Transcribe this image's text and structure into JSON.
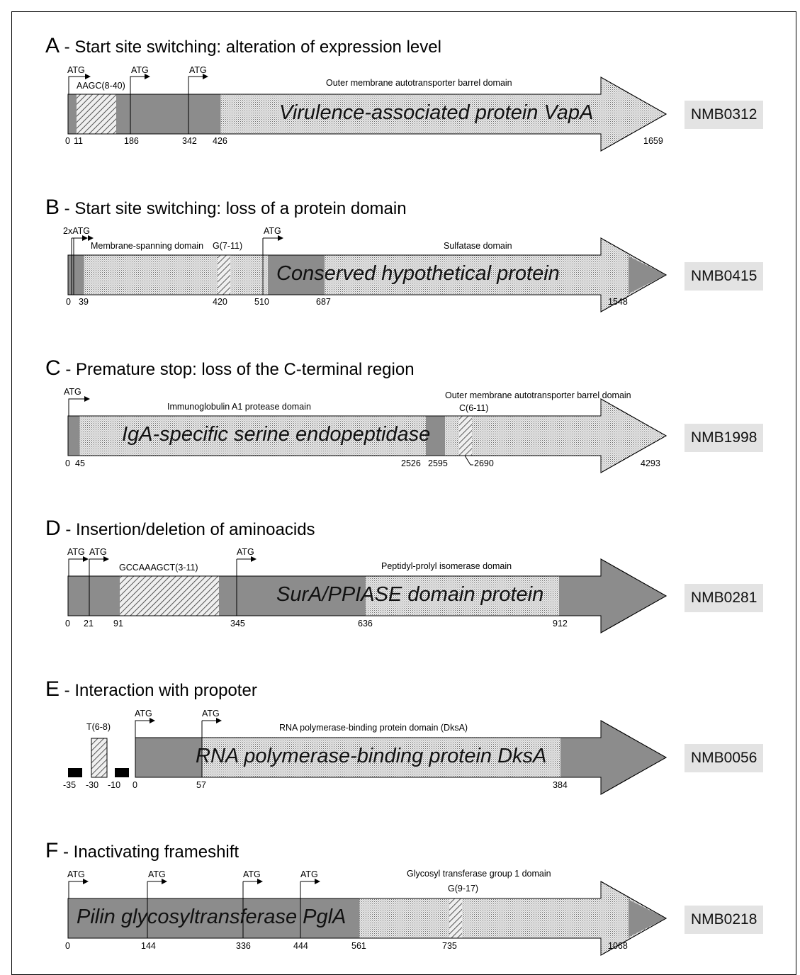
{
  "colors": {
    "domain_fill": "#8c8c8c",
    "stipple_fill": "#d2d2d2",
    "hatch_fill": "#e6e6e6",
    "gene_label_bg": "#e3e3e3"
  },
  "panels": [
    {
      "letter": "A",
      "title": " - Start site switching: alteration of expression level",
      "protein": "Virulence-associated protein VapA",
      "gene": "NMB0312",
      "domain_labels": [
        "Outer membrane autotransporter barrel domain"
      ],
      "repeat_labels": [
        "AAGC(8-40)"
      ],
      "start_labels": [
        "ATG",
        "ATG",
        "ATG"
      ],
      "positions": [
        "0",
        "11",
        "186",
        "342",
        "426",
        "1659"
      ]
    },
    {
      "letter": "B",
      "title": " - Start site switching: loss of a protein domain",
      "protein": "Conserved hypothetical protein",
      "gene": "NMB0415",
      "domain_labels": [
        "Membrane-spanning domain",
        "Sulfatase domain"
      ],
      "repeat_labels": [
        "G(7-11)"
      ],
      "start_labels": [
        "2xATG",
        "ATG"
      ],
      "positions": [
        "0",
        "39",
        "420",
        "510",
        "687",
        "1548"
      ]
    },
    {
      "letter": "C",
      "title": " - Premature stop: loss of the C-terminal region",
      "protein": "IgA-specific serine endopeptidase",
      "gene": "NMB1998",
      "domain_labels": [
        "Immunoglobulin A1 protease domain",
        "Outer membrane autotransporter barrel domain"
      ],
      "repeat_labels": [
        "C(6-11)"
      ],
      "start_labels": [
        "ATG"
      ],
      "positions": [
        "0",
        "45",
        "2526",
        "2595",
        "2690",
        "4293"
      ]
    },
    {
      "letter": "D",
      "title": " - Insertion/deletion of aminoacids",
      "protein": "SurA/PPIASE domain protein",
      "gene": "NMB0281",
      "domain_labels": [
        "Peptidyl-prolyl isomerase domain"
      ],
      "repeat_labels": [
        "GCCAAAGCT(3-11)"
      ],
      "start_labels": [
        "ATG",
        "ATG",
        "ATG"
      ],
      "positions": [
        "0",
        "21",
        "91",
        "345",
        "636",
        "912"
      ]
    },
    {
      "letter": "E",
      "title": " - Interaction with propoter",
      "protein": "RNA polymerase-binding protein DksA",
      "gene": "NMB0056",
      "domain_labels": [
        "RNA polymerase-binding protein domain (DksA)"
      ],
      "repeat_labels": [
        "T(6-8)"
      ],
      "start_labels": [
        "ATG",
        "ATG"
      ],
      "positions": [
        "-35",
        "-30",
        "-10",
        "0",
        "57",
        "384"
      ]
    },
    {
      "letter": "F",
      "title": " - Inactivating frameshift",
      "protein": "Pilin glycosyltransferase PglA",
      "gene": "NMB0218",
      "domain_labels": [
        "Glycosyl transferase group 1 domain"
      ],
      "repeat_labels": [
        "G(9-17)"
      ],
      "start_labels": [
        "ATG",
        "ATG",
        "ATG",
        "ATG"
      ],
      "positions": [
        "0",
        "144",
        "336",
        "444",
        "561",
        "735",
        "1068"
      ]
    }
  ]
}
